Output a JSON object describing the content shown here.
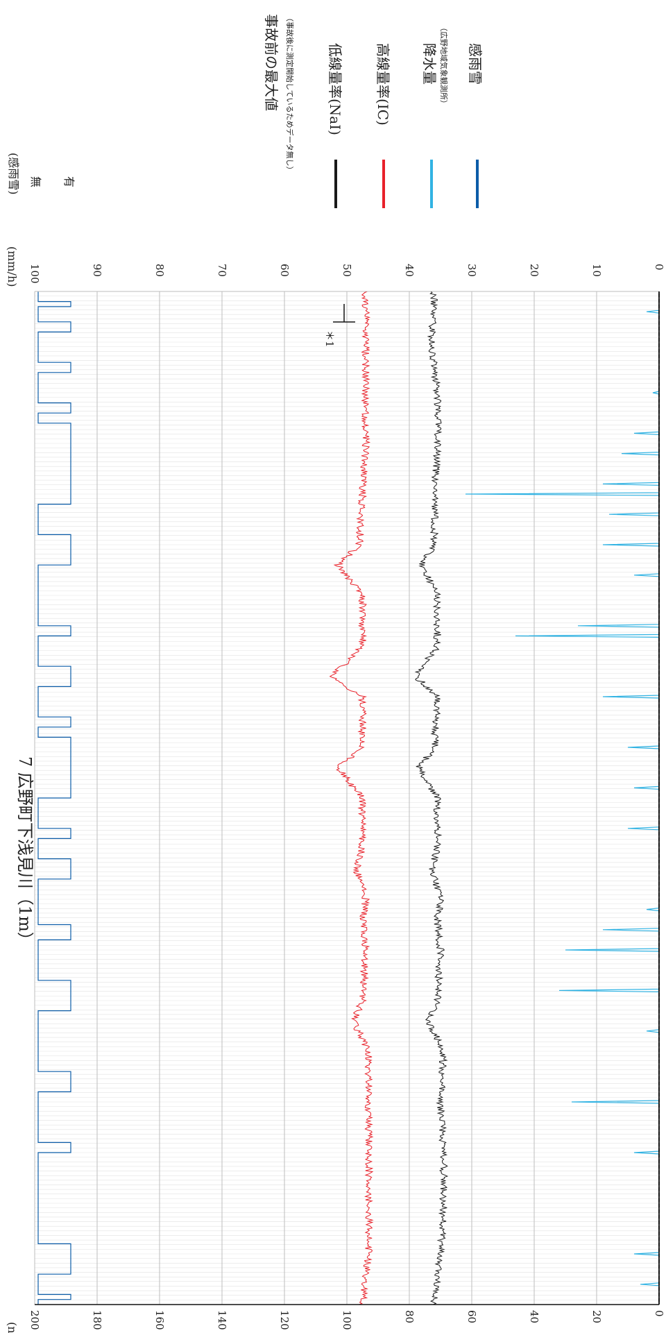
{
  "chart_data": {
    "type": "line",
    "title": "7 広野町下浅見川（1m）",
    "orientation": "rotated-90-clockwise",
    "left_axis": {
      "unit": "(nGy/h)",
      "range": [
        0,
        200
      ],
      "ticks": [
        "0",
        "20",
        "40",
        "60",
        "80",
        "100",
        "120",
        "140",
        "160",
        "180",
        "200"
      ]
    },
    "right_axis": {
      "unit": "(mm/h)",
      "range": [
        0,
        100
      ],
      "ticks": [
        "0",
        "10",
        "20",
        "30",
        "40",
        "50",
        "60",
        "70",
        "80",
        "90",
        "100"
      ]
    },
    "rain_axis": {
      "unit": "(感雨雪)",
      "levels": [
        "無",
        "有"
      ]
    },
    "annotation": "＊1",
    "legend": {
      "max_label": "事故前の最大値",
      "max_note": "（事故後に測定開始しているためデータ無し）",
      "items": [
        {
          "label": "低線量率(NaI)",
          "note": "",
          "color": "#1a1a1a"
        },
        {
          "label": "高線量率(IC)",
          "note": "",
          "color": "#e8212a"
        },
        {
          "label": "降水量",
          "note": "（広野地域気象観測所）",
          "color": "#31b3e3"
        },
        {
          "label": "感雨雪",
          "note": "",
          "color": "#0b5ca8"
        }
      ]
    },
    "series": [
      {
        "name": "低線量率(NaI)",
        "base": 69,
        "values": [
          [
            0.0,
            72
          ],
          [
            0.05,
            70
          ],
          [
            0.1,
            69
          ],
          [
            0.15,
            69
          ],
          [
            0.2,
            70
          ],
          [
            0.25,
            69
          ],
          [
            0.28,
            74
          ],
          [
            0.3,
            71
          ],
          [
            0.35,
            70
          ],
          [
            0.38,
            71
          ],
          [
            0.4,
            70
          ],
          [
            0.43,
            73
          ],
          [
            0.45,
            71
          ],
          [
            0.5,
            71
          ],
          [
            0.53,
            77
          ],
          [
            0.55,
            72
          ],
          [
            0.6,
            71
          ],
          [
            0.62,
            78
          ],
          [
            0.65,
            71
          ],
          [
            0.7,
            71
          ],
          [
            0.73,
            76
          ],
          [
            0.75,
            72
          ],
          [
            0.8,
            72
          ],
          [
            0.85,
            71
          ],
          [
            0.9,
            71
          ],
          [
            0.95,
            73
          ],
          [
            1.0,
            72
          ]
        ]
      },
      {
        "name": "高線量率(IC)",
        "base": 94,
        "values": [
          [
            0.0,
            95
          ],
          [
            0.05,
            93
          ],
          [
            0.1,
            93
          ],
          [
            0.15,
            93
          ],
          [
            0.2,
            93
          ],
          [
            0.25,
            93
          ],
          [
            0.28,
            98
          ],
          [
            0.3,
            95
          ],
          [
            0.35,
            94
          ],
          [
            0.38,
            95
          ],
          [
            0.4,
            94
          ],
          [
            0.43,
            97
          ],
          [
            0.45,
            95
          ],
          [
            0.5,
            95
          ],
          [
            0.53,
            103
          ],
          [
            0.55,
            95
          ],
          [
            0.6,
            95
          ],
          [
            0.62,
            105
          ],
          [
            0.65,
            95
          ],
          [
            0.7,
            95
          ],
          [
            0.73,
            103
          ],
          [
            0.75,
            96
          ],
          [
            0.8,
            95
          ],
          [
            0.85,
            94
          ],
          [
            0.9,
            94
          ],
          [
            0.95,
            94
          ],
          [
            1.0,
            94
          ]
        ]
      },
      {
        "name": "降水量",
        "values": []
      },
      {
        "name": "感雨雪",
        "values": []
      }
    ]
  }
}
